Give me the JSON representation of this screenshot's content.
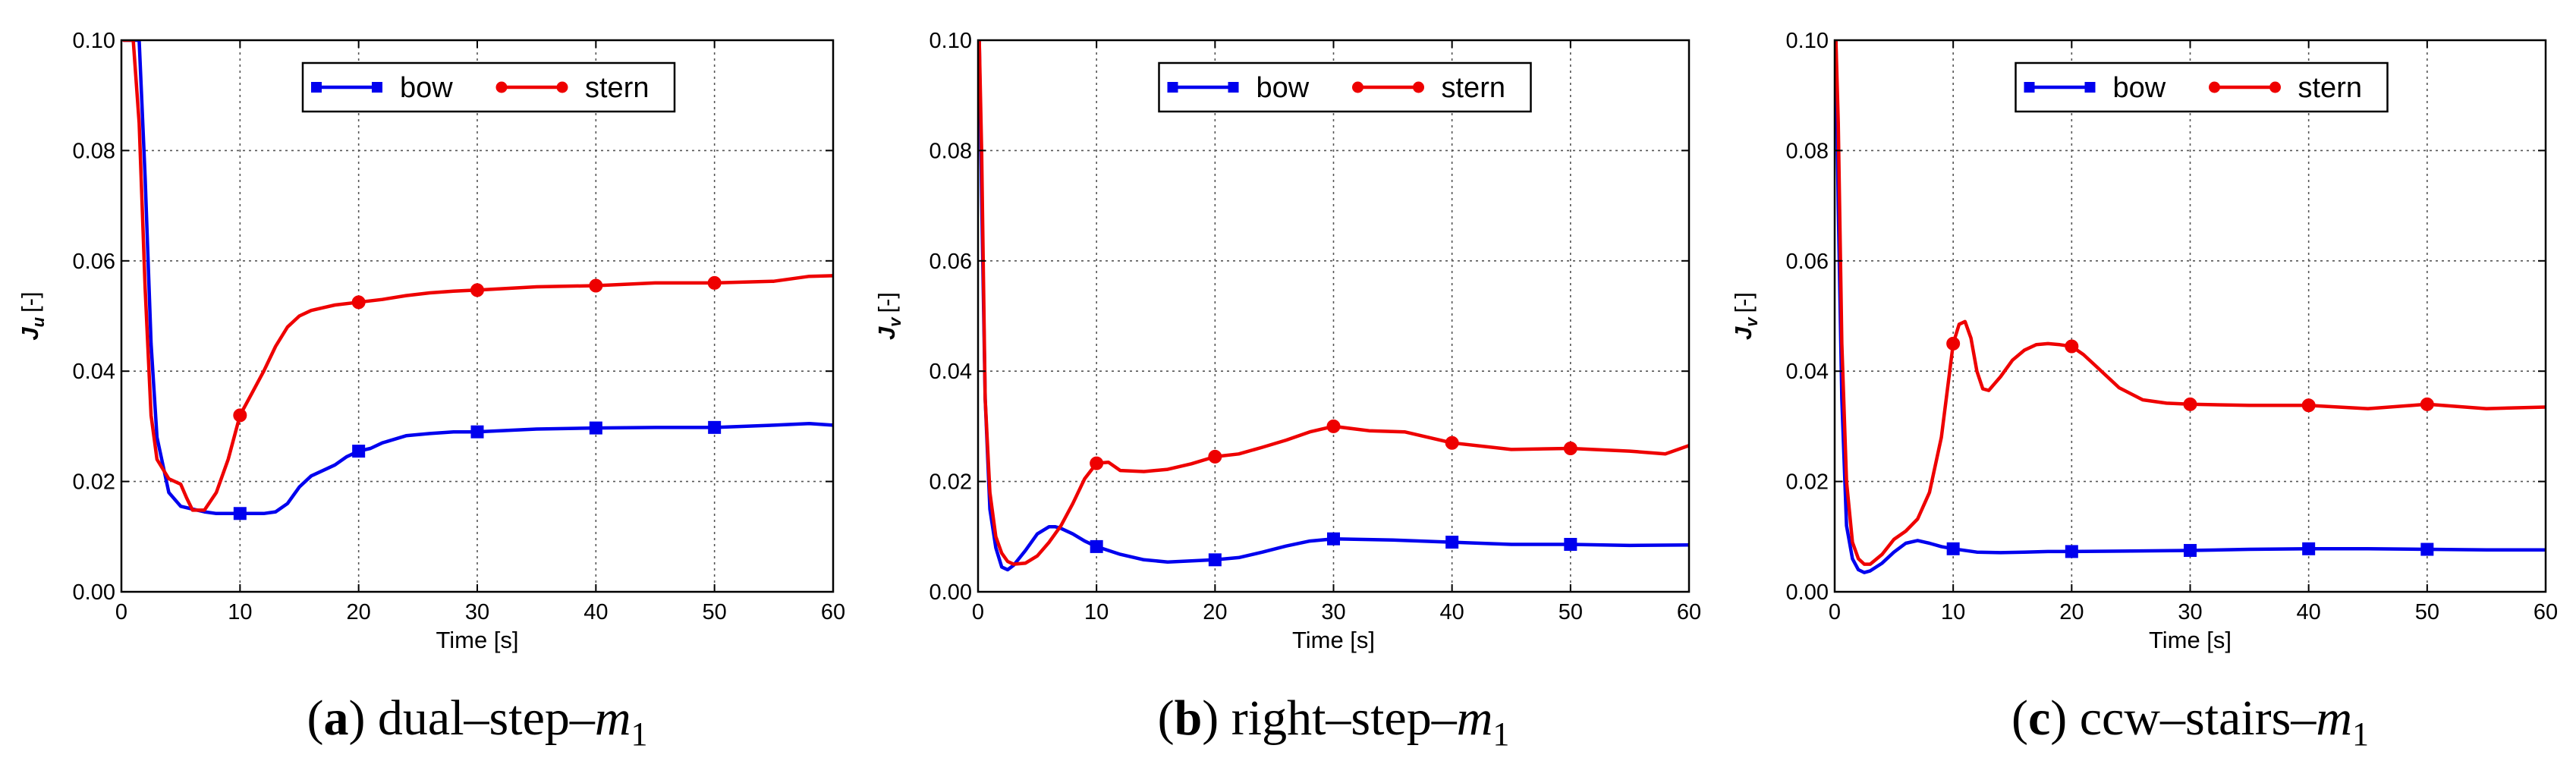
{
  "chart_data": [
    {
      "type": "line",
      "panel_letter": "a",
      "caption_text": "dual–step–",
      "caption_var": "m",
      "caption_sub": "1",
      "xlabel": "Time [s]",
      "ylabel_main": "J",
      "ylabel_sub": "u",
      "ylabel_unit": "[-]",
      "xlim": [
        0,
        60
      ],
      "ylim": [
        0,
        0.1
      ],
      "xticks": [
        0,
        10,
        20,
        30,
        40,
        50,
        60
      ],
      "yticks": [
        0.0,
        0.02,
        0.04,
        0.06,
        0.08,
        0.1
      ],
      "ytick_labels": [
        "0.00",
        "0.02",
        "0.04",
        "0.06",
        "0.08",
        "0.10"
      ],
      "grid": true,
      "legend": "top-center",
      "series": [
        {
          "name": "bow",
          "color": "#0000ee",
          "marker": "square",
          "x": [
            0.2,
            0.5,
            1,
            1.5,
            2,
            2.5,
            3,
            4,
            5,
            6,
            7,
            8,
            10,
            12,
            13,
            14,
            15,
            16,
            18,
            19,
            20,
            21,
            22,
            24,
            26,
            28,
            30,
            35,
            40,
            45,
            50,
            55,
            58,
            60
          ],
          "y": [
            0.1,
            0.1,
            0.1,
            0.1,
            0.075,
            0.045,
            0.028,
            0.018,
            0.0155,
            0.015,
            0.0145,
            0.0142,
            0.0142,
            0.0142,
            0.0145,
            0.016,
            0.019,
            0.021,
            0.023,
            0.0245,
            0.0255,
            0.026,
            0.027,
            0.0283,
            0.0287,
            0.029,
            0.029,
            0.0295,
            0.0297,
            0.0298,
            0.0298,
            0.0302,
            0.0305,
            0.0302
          ],
          "marker_x": [
            10,
            20,
            30,
            40,
            50
          ]
        },
        {
          "name": "stern",
          "color": "#ee0000",
          "marker": "circle",
          "x": [
            0.2,
            0.5,
            1,
            1.5,
            2,
            2.5,
            3,
            4,
            5,
            5.5,
            6,
            7,
            8,
            9,
            10,
            11,
            12,
            13,
            14,
            15,
            16,
            17,
            18,
            20,
            22,
            24,
            26,
            28,
            30,
            35,
            40,
            45,
            50,
            55,
            58,
            60
          ],
          "y": [
            0.1,
            0.1,
            0.1,
            0.085,
            0.055,
            0.032,
            0.024,
            0.0205,
            0.0195,
            0.017,
            0.0148,
            0.0148,
            0.018,
            0.024,
            0.032,
            0.036,
            0.04,
            0.0445,
            0.048,
            0.05,
            0.051,
            0.0515,
            0.052,
            0.0525,
            0.053,
            0.0537,
            0.0542,
            0.0545,
            0.0547,
            0.0553,
            0.0555,
            0.056,
            0.056,
            0.0563,
            0.0572,
            0.0573
          ],
          "marker_x": [
            10,
            20,
            30,
            40,
            50
          ]
        }
      ]
    },
    {
      "type": "line",
      "panel_letter": "b",
      "caption_text": "right–step–",
      "caption_var": "m",
      "caption_sub": "1",
      "xlabel": "Time [s]",
      "ylabel_main": "J",
      "ylabel_sub": "v",
      "ylabel_unit": "[-]",
      "xlim": [
        0,
        60
      ],
      "ylim": [
        0,
        0.1
      ],
      "xticks": [
        0,
        10,
        20,
        30,
        40,
        50,
        60
      ],
      "yticks": [
        0.0,
        0.02,
        0.04,
        0.06,
        0.08,
        0.1
      ],
      "ytick_labels": [
        "0.00",
        "0.02",
        "0.04",
        "0.06",
        "0.08",
        "0.10"
      ],
      "grid": true,
      "legend": "top-center",
      "series": [
        {
          "name": "bow",
          "color": "#0000ee",
          "marker": "square",
          "x": [
            0.1,
            0.3,
            0.6,
            1,
            1.5,
            2,
            2.5,
            3,
            4,
            5,
            6,
            6.5,
            7,
            8,
            9,
            10,
            12,
            14,
            16,
            18,
            20,
            22,
            24,
            26,
            28,
            30,
            35,
            40,
            45,
            50,
            55,
            60
          ],
          "y": [
            0.1,
            0.072,
            0.035,
            0.015,
            0.008,
            0.0045,
            0.004,
            0.0048,
            0.0075,
            0.0105,
            0.0118,
            0.0118,
            0.0115,
            0.0105,
            0.0092,
            0.0082,
            0.0068,
            0.0058,
            0.0054,
            0.0056,
            0.0058,
            0.0062,
            0.0072,
            0.0083,
            0.0092,
            0.0096,
            0.0094,
            0.009,
            0.0086,
            0.0086,
            0.0084,
            0.0085
          ],
          "marker_x": [
            10,
            20,
            30,
            40,
            50
          ]
        },
        {
          "name": "stern",
          "color": "#ee0000",
          "marker": "circle",
          "x": [
            0.1,
            0.3,
            0.6,
            1,
            1.5,
            2,
            2.5,
            3,
            4,
            5,
            6,
            7,
            8,
            9,
            10,
            11,
            12,
            14,
            16,
            18,
            20,
            22,
            24,
            26,
            28,
            30,
            33,
            36,
            40,
            45,
            50,
            55,
            58,
            60
          ],
          "y": [
            0.1,
            0.08,
            0.035,
            0.018,
            0.01,
            0.007,
            0.0055,
            0.005,
            0.0052,
            0.0065,
            0.009,
            0.012,
            0.016,
            0.0205,
            0.0233,
            0.0235,
            0.022,
            0.0218,
            0.0222,
            0.0232,
            0.0245,
            0.025,
            0.0262,
            0.0275,
            0.029,
            0.03,
            0.0292,
            0.029,
            0.027,
            0.0258,
            0.026,
            0.0255,
            0.025,
            0.0265
          ],
          "marker_x": [
            10,
            20,
            30,
            40,
            50
          ]
        }
      ]
    },
    {
      "type": "line",
      "panel_letter": "c",
      "caption_text": "ccw–stairs–",
      "caption_var": "m",
      "caption_sub": "1",
      "xlabel": "Time [s]",
      "ylabel_main": "J",
      "ylabel_sub": "v",
      "ylabel_unit": "[-]",
      "xlim": [
        0,
        60
      ],
      "ylim": [
        0,
        0.1
      ],
      "xticks": [
        0,
        10,
        20,
        30,
        40,
        50,
        60
      ],
      "yticks": [
        0.0,
        0.02,
        0.04,
        0.06,
        0.08,
        0.1
      ],
      "ytick_labels": [
        "0.00",
        "0.02",
        "0.04",
        "0.06",
        "0.08",
        "0.10"
      ],
      "grid": true,
      "legend": "top-center",
      "series": [
        {
          "name": "bow",
          "color": "#0000ee",
          "marker": "square",
          "x": [
            0.1,
            0.3,
            0.6,
            1,
            1.5,
            2,
            2.5,
            3,
            4,
            5,
            6,
            7,
            8,
            9,
            10,
            12,
            14,
            16,
            18,
            20,
            25,
            30,
            35,
            40,
            45,
            50,
            55,
            60
          ],
          "y": [
            0.1,
            0.07,
            0.035,
            0.012,
            0.006,
            0.004,
            0.0035,
            0.0038,
            0.0052,
            0.0072,
            0.0088,
            0.0093,
            0.0088,
            0.0082,
            0.0078,
            0.0072,
            0.0071,
            0.0072,
            0.0073,
            0.0073,
            0.0074,
            0.0075,
            0.0077,
            0.0078,
            0.0078,
            0.0077,
            0.0076,
            0.0076
          ],
          "marker_x": [
            10,
            20,
            30,
            40,
            50
          ]
        },
        {
          "name": "stern",
          "color": "#ee0000",
          "marker": "circle",
          "x": [
            0.1,
            0.3,
            0.6,
            1,
            1.5,
            2,
            2.5,
            3,
            4,
            5,
            6,
            7,
            8,
            9,
            10,
            10.5,
            11,
            11.5,
            12,
            12.5,
            13,
            14,
            15,
            16,
            17,
            18,
            19,
            20,
            21,
            22,
            24,
            26,
            28,
            30,
            35,
            40,
            45,
            50,
            55,
            60
          ],
          "y": [
            0.1,
            0.085,
            0.045,
            0.02,
            0.009,
            0.006,
            0.005,
            0.005,
            0.0068,
            0.0095,
            0.011,
            0.0132,
            0.018,
            0.028,
            0.045,
            0.0485,
            0.049,
            0.046,
            0.04,
            0.0368,
            0.0365,
            0.039,
            0.042,
            0.0438,
            0.0448,
            0.045,
            0.0448,
            0.0445,
            0.043,
            0.041,
            0.037,
            0.0348,
            0.0342,
            0.034,
            0.0338,
            0.0338,
            0.0332,
            0.034,
            0.0332,
            0.0335
          ],
          "marker_x": [
            10,
            20,
            30,
            40,
            50
          ]
        }
      ]
    }
  ]
}
